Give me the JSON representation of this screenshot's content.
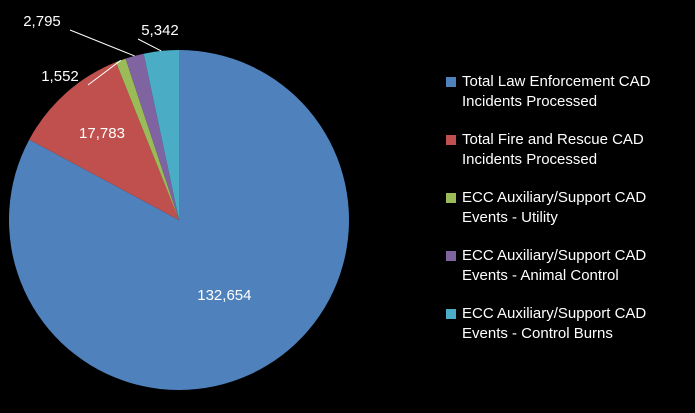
{
  "chart_data": {
    "type": "pie",
    "categories": [
      "Total Law Enforcement CAD Incidents Processed",
      "Total Fire and Rescue CAD Incidents Processed",
      "ECC Auxiliary/Support CAD Events - Utility",
      "ECC Auxiliary/Support CAD Events - Animal Control",
      "ECC Auxiliary/Support CAD Events - Control Burns"
    ],
    "values": [
      132654,
      17783,
      1552,
      2795,
      5342
    ],
    "value_labels": [
      "132,654",
      "17,783",
      "1,552",
      "2,795",
      "5,342"
    ],
    "colors": [
      "#4f81bd",
      "#c0504d",
      "#9bbb59",
      "#8064a2",
      "#4bacc6"
    ],
    "legend": "right"
  }
}
